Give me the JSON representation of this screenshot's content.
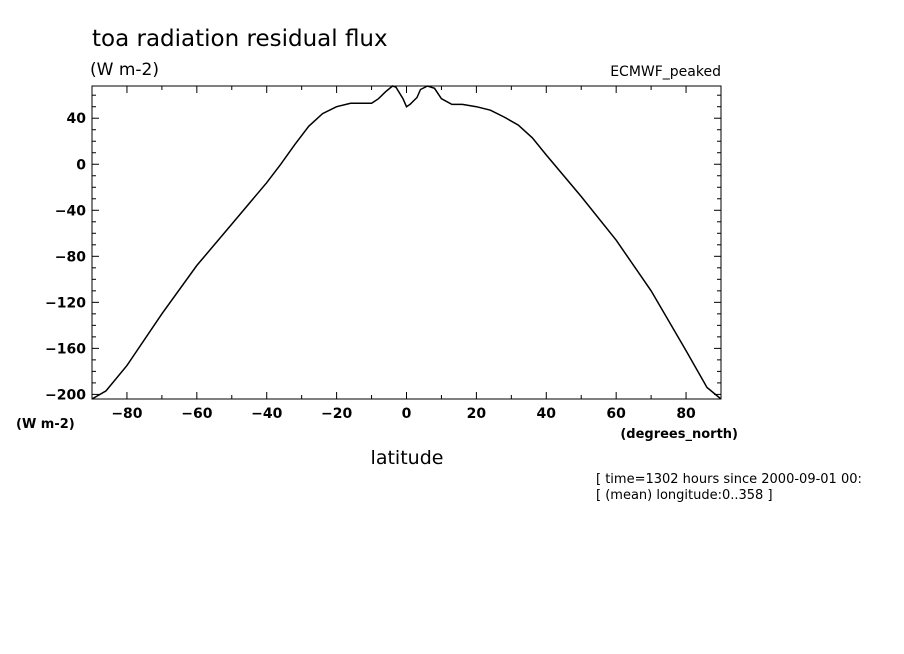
{
  "chart_data": {
    "type": "line",
    "title": "toa radiation residual flux",
    "units": "(W m-2)",
    "model": "ECMWF_peaked",
    "xlabel": "latitude",
    "xunits": "(degrees_north)",
    "yunits_axis": "(W m-2)",
    "xlim": [
      -90,
      90
    ],
    "ylim": [
      -204,
      68
    ],
    "xticks": [
      -80,
      -60,
      -40,
      -20,
      0,
      20,
      40,
      60,
      80
    ],
    "yticks": [
      -200,
      -160,
      -120,
      -80,
      -40,
      0,
      40
    ],
    "series": [
      {
        "x": [
          -90,
          -86,
          -80,
          -70,
          -60,
          -50,
          -40,
          -36,
          -32,
          -28,
          -24,
          -20,
          -16,
          -13,
          -10,
          -8,
          -6,
          -4,
          -3,
          -1,
          0,
          1,
          3,
          4,
          6,
          8,
          10,
          13,
          16,
          20,
          24,
          28,
          32,
          36,
          40,
          50,
          60,
          70,
          80,
          86,
          90
        ],
        "y": [
          -204,
          -197,
          -175,
          -130,
          -88,
          -52,
          -16,
          0,
          17,
          33,
          44,
          50,
          53,
          53,
          53,
          57,
          63,
          68,
          67,
          57,
          50,
          52,
          58,
          65,
          68,
          66,
          57,
          52,
          52,
          50,
          47,
          41,
          34,
          23,
          8,
          -28,
          -66,
          -110,
          -162,
          -194,
          -204
        ]
      }
    ],
    "annotations": [
      "[ time=1302 hours since 2000-09-01 00:",
      "[ (mean) longitude:0..358 ]"
    ]
  }
}
